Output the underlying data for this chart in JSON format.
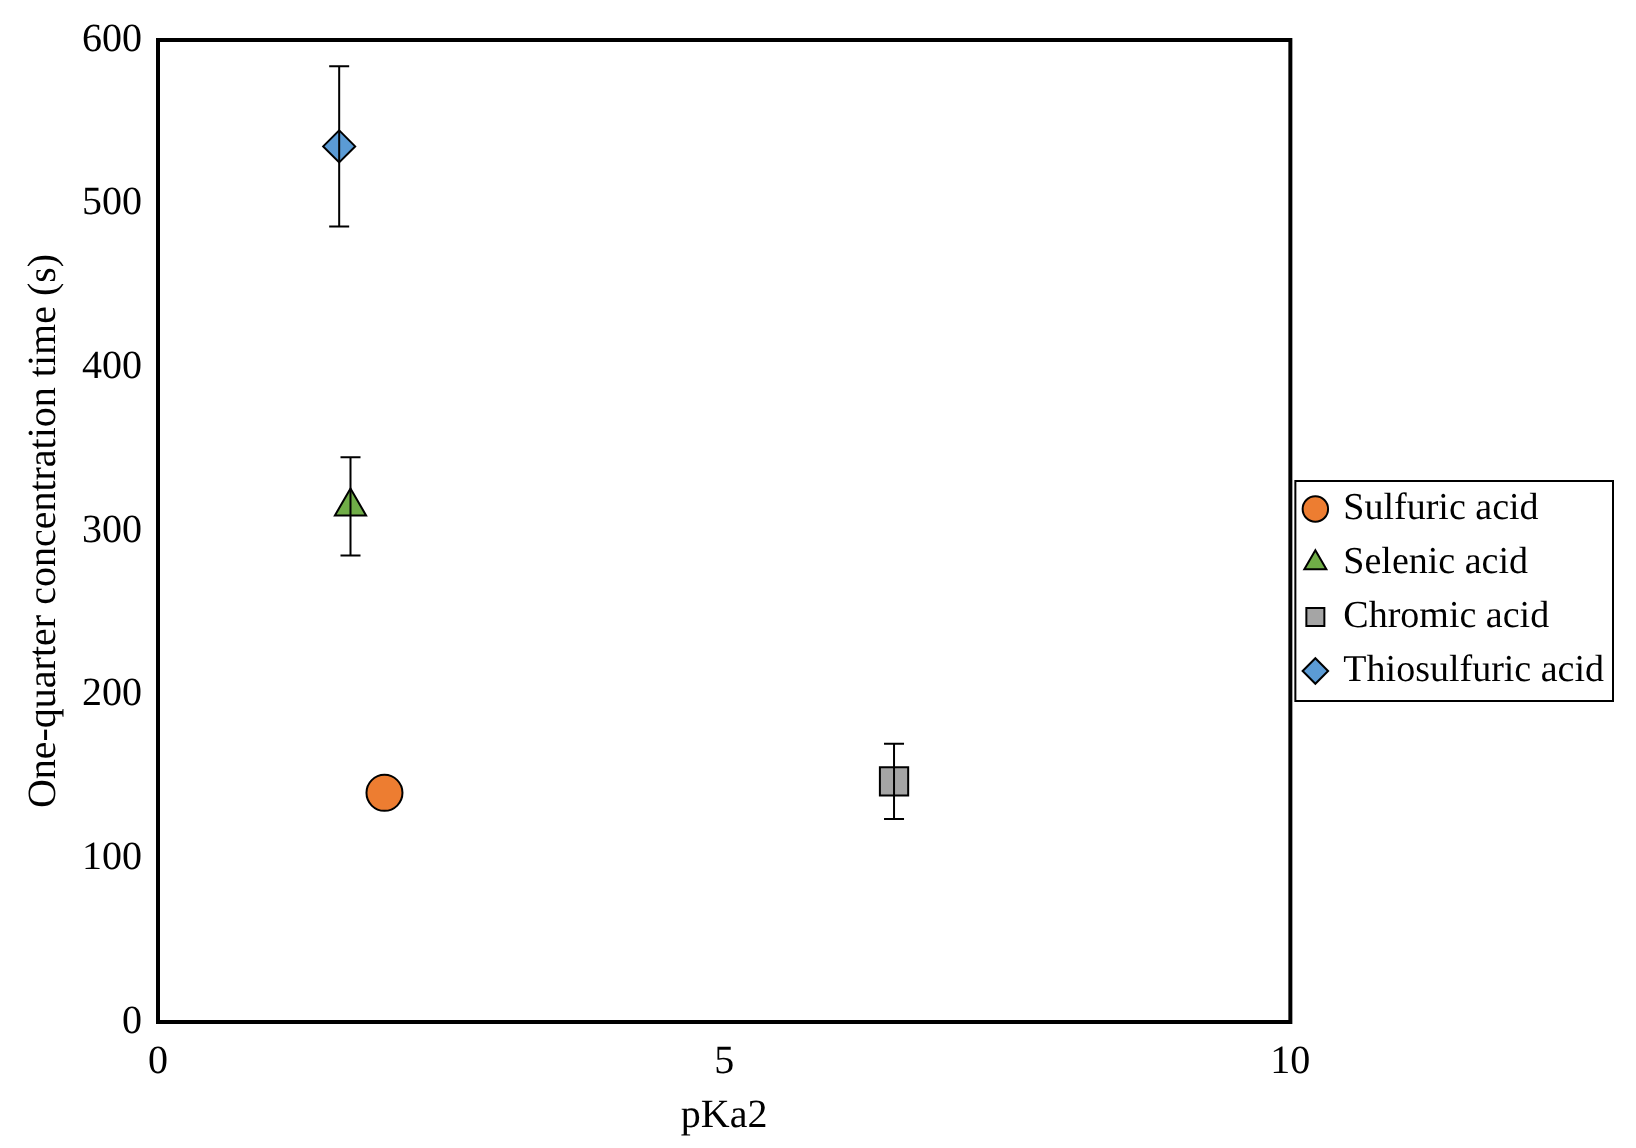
{
  "chart_data": {
    "type": "scatter",
    "xlabel": "pKa2",
    "ylabel": "One-quarter concentration time (s)",
    "xlim": [
      0,
      10
    ],
    "xticks": [
      0,
      5,
      10
    ],
    "ylim": [
      0,
      600
    ],
    "yticks": [
      0,
      100,
      200,
      300,
      400,
      500,
      600
    ],
    "grid": false,
    "legend": "right",
    "series": [
      {
        "name": "Sulfuric acid",
        "color": "#ed7d31",
        "marker": "circle",
        "x": [
          2.0
        ],
        "values": [
          140
        ]
      },
      {
        "name": "Selenic acid",
        "color": "#70ad47",
        "marker": "triangle",
        "x": [
          1.7
        ],
        "values": [
          315
        ],
        "errors": [
          30
        ]
      },
      {
        "name": "Chromic acid",
        "color": "#a5a5a5",
        "marker": "square",
        "x": [
          6.5
        ],
        "values": [
          147
        ],
        "errors": [
          23
        ]
      },
      {
        "name": "Thiosulfuric acid",
        "color": "#5b9bd5",
        "marker": "diamond",
        "x": [
          1.6
        ],
        "values": [
          535
        ],
        "errors": [
          49
        ]
      }
    ]
  }
}
